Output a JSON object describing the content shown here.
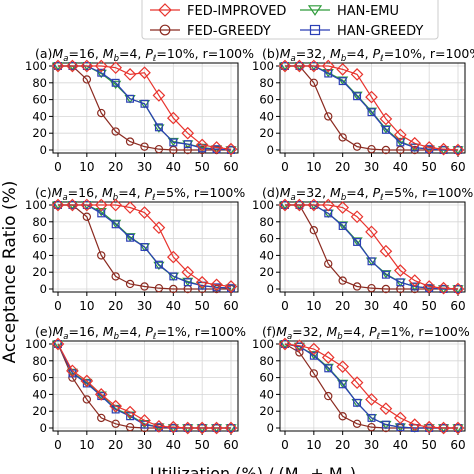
{
  "figure": {
    "ylabel": "Acceptance Ratio (%)",
    "xlabel": "Utilization (%) / (M",
    "xlabel_sub_a": "a",
    "xlabel_plus": " + M",
    "xlabel_sub_b": "b",
    "xlabel_close": ")"
  },
  "legend": [
    {
      "name": "FED-IMPROVED",
      "color": "#e8342e",
      "marker": "diamond"
    },
    {
      "name": "HAN-EMU",
      "color": "#2e9b3a",
      "marker": "triangle-down"
    },
    {
      "name": "FED-GREEDY",
      "color": "#8b2a20",
      "marker": "circle"
    },
    {
      "name": "HAN-GREEDY",
      "color": "#2b3fb5",
      "marker": "square"
    }
  ],
  "chart_data": [
    {
      "type": "line",
      "label": "(a)",
      "Ma": "16",
      "Mb": "4",
      "Pl": "10%",
      "r": "100%",
      "x": [
        0,
        5,
        10,
        15,
        20,
        25,
        30,
        35,
        40,
        45,
        50,
        55,
        60
      ],
      "ylim": [
        0,
        100
      ],
      "xticks": [
        0,
        10,
        20,
        30,
        40,
        50,
        60
      ],
      "yticks": [
        0,
        20,
        40,
        60,
        80,
        100
      ],
      "grid": true,
      "series": [
        {
          "name": "FED-IMPROVED",
          "values": [
            100,
            100,
            100,
            100,
            98,
            90,
            92,
            65,
            38,
            20,
            6,
            3,
            1
          ]
        },
        {
          "name": "HAN-EMU",
          "values": [
            100,
            100,
            100,
            91,
            78,
            61,
            55,
            26,
            10,
            7,
            3,
            1,
            0
          ]
        },
        {
          "name": "FED-GREEDY",
          "values": [
            100,
            100,
            84,
            44,
            22,
            10,
            4,
            1,
            0,
            0,
            0,
            0,
            0
          ]
        },
        {
          "name": "HAN-GREEDY",
          "values": [
            100,
            100,
            100,
            92,
            80,
            61,
            55,
            27,
            9,
            7,
            2,
            1,
            0
          ]
        }
      ]
    },
    {
      "type": "line",
      "label": "(b)",
      "Ma": "32",
      "Mb": "4",
      "Pl": "10%",
      "r": "100%",
      "x": [
        0,
        5,
        10,
        15,
        20,
        25,
        30,
        35,
        40,
        45,
        50,
        55,
        60
      ],
      "ylim": [
        0,
        100
      ],
      "xticks": [
        0,
        10,
        20,
        30,
        40,
        50,
        60
      ],
      "yticks": [
        0,
        20,
        40,
        60,
        80,
        100
      ],
      "grid": true,
      "series": [
        {
          "name": "FED-IMPROVED",
          "values": [
            100,
            100,
            100,
            100,
            96,
            90,
            63,
            37,
            18,
            8,
            3,
            1,
            0
          ]
        },
        {
          "name": "HAN-EMU",
          "values": [
            100,
            100,
            100,
            92,
            83,
            65,
            46,
            25,
            10,
            3,
            1,
            0,
            0
          ]
        },
        {
          "name": "FED-GREEDY",
          "values": [
            100,
            100,
            80,
            40,
            15,
            4,
            1,
            0,
            0,
            0,
            0,
            0,
            0
          ]
        },
        {
          "name": "HAN-GREEDY",
          "values": [
            100,
            100,
            100,
            91,
            82,
            64,
            45,
            24,
            9,
            3,
            1,
            0,
            0
          ]
        }
      ]
    },
    {
      "type": "line",
      "label": "(c)",
      "Ma": "16",
      "Mb": "4",
      "Pl": "5%",
      "r": "100%",
      "x": [
        0,
        5,
        10,
        15,
        20,
        25,
        30,
        35,
        40,
        45,
        50,
        55,
        60
      ],
      "ylim": [
        0,
        100
      ],
      "xticks": [
        0,
        10,
        20,
        30,
        40,
        50,
        60
      ],
      "yticks": [
        0,
        20,
        40,
        60,
        80,
        100
      ],
      "grid": true,
      "series": [
        {
          "name": "FED-IMPROVED",
          "values": [
            100,
            100,
            100,
            100,
            100,
            97,
            91,
            73,
            38,
            20,
            8,
            5,
            3
          ]
        },
        {
          "name": "HAN-EMU",
          "values": [
            100,
            100,
            100,
            92,
            78,
            62,
            50,
            28,
            15,
            9,
            4,
            2,
            1
          ]
        },
        {
          "name": "FED-GREEDY",
          "values": [
            100,
            100,
            86,
            40,
            15,
            6,
            3,
            1,
            0,
            0,
            0,
            0,
            0
          ]
        },
        {
          "name": "HAN-GREEDY",
          "values": [
            100,
            100,
            100,
            90,
            77,
            61,
            50,
            29,
            15,
            8,
            4,
            2,
            1
          ]
        }
      ]
    },
    {
      "type": "line",
      "label": "(d)",
      "Ma": "32",
      "Mb": "4",
      "Pl": "5%",
      "r": "100%",
      "x": [
        0,
        5,
        10,
        15,
        20,
        25,
        30,
        35,
        40,
        45,
        50,
        55,
        60
      ],
      "ylim": [
        0,
        100
      ],
      "xticks": [
        0,
        10,
        20,
        30,
        40,
        50,
        60
      ],
      "yticks": [
        0,
        20,
        40,
        60,
        80,
        100
      ],
      "grid": true,
      "series": [
        {
          "name": "FED-IMPROVED",
          "values": [
            100,
            100,
            100,
            100,
            97,
            86,
            68,
            45,
            22,
            10,
            3,
            1,
            0
          ]
        },
        {
          "name": "HAN-EMU",
          "values": [
            100,
            100,
            100,
            90,
            76,
            57,
            33,
            18,
            8,
            3,
            1,
            0,
            0
          ]
        },
        {
          "name": "FED-GREEDY",
          "values": [
            100,
            100,
            70,
            30,
            10,
            3,
            1,
            0,
            0,
            0,
            0,
            0,
            0
          ]
        },
        {
          "name": "HAN-GREEDY",
          "values": [
            100,
            100,
            100,
            90,
            75,
            56,
            33,
            17,
            8,
            3,
            1,
            0,
            0
          ]
        }
      ]
    },
    {
      "type": "line",
      "label": "(e)",
      "Ma": "16",
      "Mb": "4",
      "Pl": "1%",
      "r": "100%",
      "x": [
        0,
        5,
        10,
        15,
        20,
        25,
        30,
        35,
        40,
        45,
        50,
        55,
        60
      ],
      "ylim": [
        0,
        100
      ],
      "xticks": [
        0,
        10,
        20,
        30,
        40,
        50,
        60
      ],
      "yticks": [
        0,
        20,
        40,
        60,
        80,
        100
      ],
      "grid": true,
      "series": [
        {
          "name": "FED-IMPROVED",
          "values": [
            100,
            68,
            56,
            40,
            26,
            19,
            9,
            2,
            1,
            0,
            0,
            0,
            0
          ]
        },
        {
          "name": "HAN-EMU",
          "values": [
            100,
            66,
            54,
            39,
            23,
            15,
            5,
            1,
            0,
            0,
            0,
            0,
            0
          ]
        },
        {
          "name": "FED-GREEDY",
          "values": [
            100,
            60,
            34,
            12,
            5,
            1,
            0,
            0,
            0,
            0,
            0,
            0,
            0
          ]
        },
        {
          "name": "HAN-GREEDY",
          "values": [
            100,
            65,
            53,
            38,
            22,
            14,
            4,
            1,
            0,
            0,
            0,
            0,
            0
          ]
        }
      ]
    },
    {
      "type": "line",
      "label": "(f)",
      "Ma": "32",
      "Mb": "4",
      "Pl": "1%",
      "r": "100%",
      "x": [
        0,
        5,
        10,
        15,
        20,
        25,
        30,
        35,
        40,
        45,
        50,
        55,
        60
      ],
      "ylim": [
        0,
        100
      ],
      "xticks": [
        0,
        10,
        20,
        30,
        40,
        50,
        60
      ],
      "yticks": [
        0,
        20,
        40,
        60,
        80,
        100
      ],
      "grid": true,
      "series": [
        {
          "name": "FED-IMPROVED",
          "values": [
            100,
            98,
            94,
            84,
            73,
            54,
            34,
            23,
            12,
            4,
            1,
            0,
            0
          ]
        },
        {
          "name": "HAN-EMU",
          "values": [
            100,
            97,
            87,
            72,
            53,
            30,
            12,
            4,
            1,
            0,
            0,
            0,
            0
          ]
        },
        {
          "name": "FED-GREEDY",
          "values": [
            100,
            90,
            65,
            38,
            14,
            5,
            1,
            0,
            0,
            0,
            0,
            0,
            0
          ]
        },
        {
          "name": "HAN-GREEDY",
          "values": [
            100,
            97,
            86,
            71,
            52,
            30,
            12,
            4,
            1,
            0,
            0,
            0,
            0
          ]
        }
      ]
    }
  ]
}
